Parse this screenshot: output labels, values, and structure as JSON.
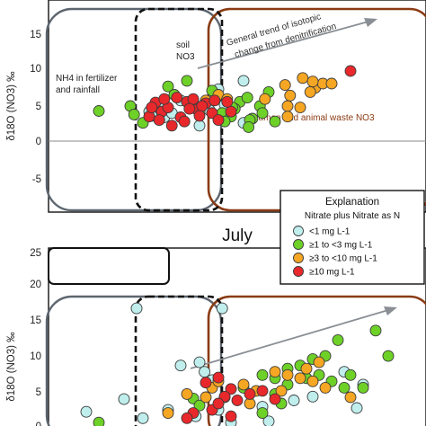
{
  "colors": {
    "lt1": "#bfeeed",
    "b1to3": "#6ed128",
    "b3to10": "#f5a623",
    "ge10": "#e8282b",
    "brown_box": "#8a3b14",
    "gray_box": "#5d6670"
  },
  "chart_data": [
    {
      "type": "scatter",
      "title": "",
      "ylabel": "δ18O (NO3) ‰",
      "ylim": [
        -10,
        20
      ],
      "yticks": [
        "15",
        "10",
        "5",
        "0",
        "-5"
      ],
      "annotations": {
        "fertilizer_line1": "NH4 in fertilizer",
        "fertilizer_line2": "and rainfall",
        "soil_line1": "soil",
        "soil_line2": "NO3",
        "trend_line1": "General trend of isotopic",
        "trend_line2": "change from denitrification",
        "waste": "human and animal waste NO3"
      },
      "series": [
        {
          "key": "lt1",
          "values": [
            [
              -7.0,
              4.2
            ],
            [
              -6.2,
              4.8
            ],
            [
              -5.8,
              3.4
            ],
            [
              -4.5,
              5.8
            ],
            [
              -3.0,
              2.2
            ],
            [
              -1.0,
              5.2
            ],
            [
              0.5,
              8.6
            ],
            [
              -1.5,
              7.4
            ],
            [
              0.5,
              2.6
            ],
            [
              -5.2,
              4.0
            ],
            [
              -2.2,
              4.4
            ],
            [
              -6.8,
              3.6
            ]
          ]
        },
        {
          "key": "b1to3",
          "values": [
            [
              -11.0,
              4.3
            ],
            [
              -8.5,
              5.0
            ],
            [
              -7.5,
              2.6
            ],
            [
              -5.5,
              7.8
            ],
            [
              -4.0,
              8.6
            ],
            [
              -2.0,
              7.2
            ],
            [
              -1.2,
              4.0
            ],
            [
              0.2,
              5.6
            ],
            [
              0.8,
              6.2
            ],
            [
              1.2,
              3.2
            ],
            [
              1.8,
              5.0
            ],
            [
              2.5,
              7.0
            ],
            [
              -0.5,
              3.5
            ],
            [
              -1.0,
              2.8
            ],
            [
              -0.2,
              4.6
            ],
            [
              1.0,
              3.0
            ],
            [
              2.0,
              4.0
            ],
            [
              3.0,
              2.8
            ],
            [
              -0.4,
              4.8
            ],
            [
              0.9,
              2.0
            ],
            [
              -8.2,
              3.8
            ],
            [
              -5.0,
              6.6
            ]
          ]
        },
        {
          "key": "b3to10",
          "values": [
            [
              -2.5,
              5.8
            ],
            [
              -1.5,
              6.6
            ],
            [
              -0.8,
              6.0
            ],
            [
              4.0,
              5.0
            ],
            [
              4.2,
              6.5
            ],
            [
              5.2,
              9.0
            ],
            [
              6.2,
              7.6
            ],
            [
              6.8,
              8.2
            ],
            [
              5.8,
              7.0
            ],
            [
              7.5,
              8.2
            ],
            [
              4.0,
              3.5
            ],
            [
              3.8,
              8.0
            ],
            [
              5.0,
              4.8
            ],
            [
              -3.0,
              4.2
            ],
            [
              2.2,
              6.0
            ],
            [
              6.0,
              8.5
            ]
          ]
        },
        {
          "key": "ge10",
          "values": [
            [
              -7.0,
              3.5
            ],
            [
              -6.5,
              5.5
            ],
            [
              -6.0,
              4.2
            ],
            [
              -5.5,
              4.8
            ],
            [
              -5.2,
              2.2
            ],
            [
              -4.5,
              3.4
            ],
            [
              -4.0,
              5.6
            ],
            [
              -3.5,
              6.0
            ],
            [
              -3.2,
              4.5
            ],
            [
              -2.5,
              5.4
            ],
            [
              -2.0,
              4.0
            ],
            [
              -1.5,
              3.0
            ],
            [
              -0.5,
              4.2
            ],
            [
              9.0,
              10.0
            ],
            [
              -6.8,
              4.8
            ],
            [
              -5.8,
              6.0
            ],
            [
              -4.8,
              6.2
            ],
            [
              -3.8,
              4.6
            ],
            [
              -2.8,
              5.0
            ],
            [
              -6.2,
              3.0
            ],
            [
              -4.2,
              2.8
            ],
            [
              -3.0,
              3.6
            ],
            [
              -1.8,
              5.8
            ],
            [
              -0.8,
              5.6
            ]
          ]
        }
      ]
    },
    {
      "type": "scatter",
      "title": "July",
      "ylabel": "δ18O (NO3) ‰",
      "ylim": [
        -0.6,
        28
      ],
      "yticks": [
        "25",
        "20",
        "15",
        "10",
        "5",
        "0"
      ],
      "series": [
        {
          "key": "lt1",
          "values": [
            [
              -8.0,
              18.5
            ],
            [
              -1.2,
              18.5
            ],
            [
              -4.5,
              9.5
            ],
            [
              -12.0,
              2.2
            ],
            [
              -9.0,
              4.2
            ],
            [
              -5.5,
              2.5
            ],
            [
              -3.0,
              10.0
            ],
            [
              -2.6,
              8.5
            ],
            [
              2.0,
              3.0
            ],
            [
              -2.0,
              7.2
            ],
            [
              4.5,
              4.0
            ],
            [
              -3.3,
              1.5
            ],
            [
              -1.5,
              2.5
            ],
            [
              2.5,
              0.7
            ],
            [
              6.0,
              4.6
            ],
            [
              8.5,
              8.5
            ],
            [
              -7.5,
              1.2
            ],
            [
              9.5,
              2.8
            ],
            [
              10.0,
              6.5
            ],
            [
              -0.5,
              0.5
            ]
          ]
        },
        {
          "key": "b1to3",
          "values": [
            [
              -3.5,
              4.3
            ],
            [
              0.5,
              6.0
            ],
            [
              2.0,
              8.0
            ],
            [
              3.0,
              7.5
            ],
            [
              4.0,
              9.0
            ],
            [
              5.0,
              9.5
            ],
            [
              6.0,
              10.5
            ],
            [
              7.0,
              11.0
            ],
            [
              8.0,
              13.5
            ],
            [
              11.0,
              15.0
            ],
            [
              12.0,
              11.0
            ],
            [
              8.5,
              6.0
            ],
            [
              3.0,
              5.0
            ],
            [
              -3.0,
              3.2
            ],
            [
              2.0,
              2.0
            ],
            [
              4.0,
              6.5
            ],
            [
              5.5,
              7.5
            ],
            [
              6.5,
              8.0
            ],
            [
              7.5,
              7.0
            ],
            [
              9.0,
              8.0
            ],
            [
              10.0,
              6.0
            ],
            [
              3.5,
              3.5
            ],
            [
              -11.0,
              0.5
            ]
          ]
        },
        {
          "key": "b3to10",
          "values": [
            [
              -2.0,
              6.0
            ],
            [
              0.5,
              6.5
            ],
            [
              1.5,
              5.5
            ],
            [
              3.0,
              8.5
            ],
            [
              4.0,
              8.0
            ],
            [
              5.0,
              7.5
            ],
            [
              5.5,
              9.0
            ],
            [
              6.5,
              10.0
            ],
            [
              -1.5,
              7.0
            ],
            [
              -1.0,
              4.5
            ],
            [
              1.0,
              3.5
            ],
            [
              -2.5,
              4.5
            ],
            [
              6.0,
              7.0
            ],
            [
              7.0,
              6.0
            ],
            [
              9.0,
              4.5
            ],
            [
              -4.0,
              5.0
            ],
            [
              -5.5,
              2.0
            ],
            [
              3.5,
              5.5
            ]
          ]
        },
        {
          "key": "ge10",
          "values": [
            [
              -1.5,
              7.6
            ],
            [
              -0.5,
              5.8
            ],
            [
              -1.0,
              4.6
            ],
            [
              -2.5,
              6.8
            ],
            [
              -3.5,
              2.0
            ],
            [
              -4.0,
              1.2
            ],
            [
              1.0,
              5.0
            ],
            [
              3.0,
              4.2
            ],
            [
              -2.0,
              2.5
            ],
            [
              -0.5,
              1.5
            ],
            [
              0.0,
              4.0
            ],
            [
              2.0,
              5.5
            ],
            [
              -1.5,
              3.5
            ]
          ]
        }
      ]
    }
  ],
  "panel2_label": "July",
  "legend": {
    "title": "Explanation",
    "subtitle": "Nitrate plus Nitrate as N",
    "items": [
      {
        "key": "lt1",
        "label": "<1 mg L-1"
      },
      {
        "key": "b1to3",
        "label": "≥1 to <3 mg L-1"
      },
      {
        "key": "b3to10",
        "label": "≥3 to <10 mg L-1"
      },
      {
        "key": "ge10",
        "label": "≥10 mg L-1"
      }
    ]
  }
}
